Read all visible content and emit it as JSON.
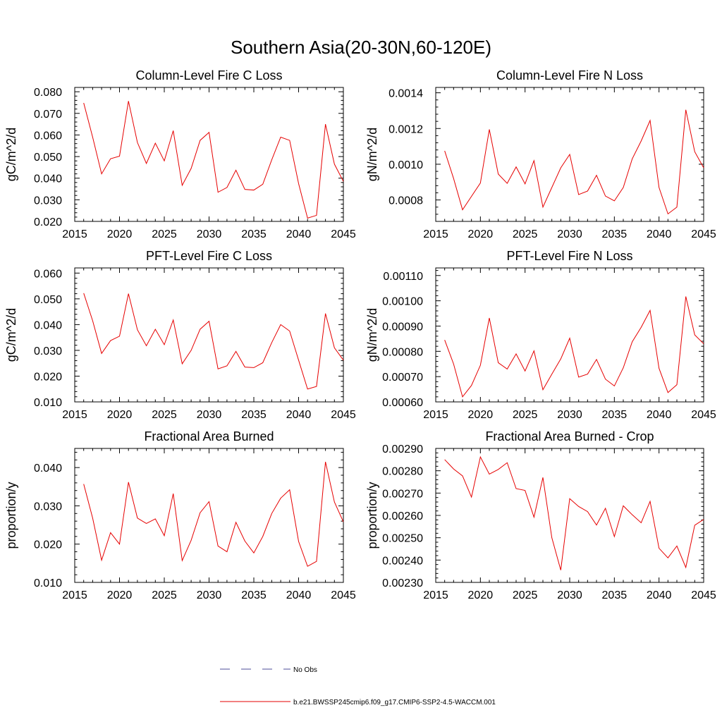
{
  "title": "Southern Asia(20-30N,60-120E)",
  "legend": [
    {
      "label": "No Obs",
      "color": "#4d4d99",
      "dash": true
    },
    {
      "label": "b.e21.BWSSP245cmip6.f09_g17.CMIP6-SSP2-4.5-WACCM.001",
      "color": "#e60000",
      "dash": false
    }
  ],
  "chart_data": [
    {
      "type": "line",
      "title": "Column-Level Fire C Loss",
      "ylabel": "gC/m^2/d",
      "xlim": [
        2015,
        2045
      ],
      "ylim": [
        0.02,
        0.082
      ],
      "xticks": [
        "2015",
        "2020",
        "2025",
        "2030",
        "2035",
        "2040",
        "2045"
      ],
      "yticks": [
        "0.020",
        "0.030",
        "0.040",
        "0.050",
        "0.060",
        "0.070",
        "0.080"
      ],
      "x": [
        2016,
        2017,
        2018,
        2019,
        2020,
        2021,
        2022,
        2023,
        2024,
        2025,
        2026,
        2027,
        2028,
        2029,
        2030,
        2031,
        2032,
        2033,
        2034,
        2035,
        2036,
        2037,
        2038,
        2039,
        2040,
        2041,
        2042,
        2043,
        2044,
        2045
      ],
      "series": [
        {
          "values": [
            0.0748,
            0.059,
            0.042,
            0.049,
            0.0502,
            0.0757,
            0.0565,
            0.0468,
            0.0562,
            0.048,
            0.062,
            0.0367,
            0.0445,
            0.0575,
            0.0612,
            0.0335,
            0.0357,
            0.0437,
            0.0348,
            0.0345,
            0.0372,
            0.0485,
            0.059,
            0.0575,
            0.0375,
            0.0215,
            0.0228,
            0.065,
            0.0465,
            0.0385
          ]
        }
      ]
    },
    {
      "type": "line",
      "title": "Column-Level Fire N Loss",
      "ylabel": "gN/m^2/d",
      "xlim": [
        2015,
        2045
      ],
      "ylim": [
        0.00068,
        0.00143
      ],
      "xticks": [
        "2015",
        "2020",
        "2025",
        "2030",
        "2035",
        "2040",
        "2045"
      ],
      "yticks": [
        "0.0008",
        "0.0010",
        "0.0012",
        "0.0014"
      ],
      "x": [
        2016,
        2017,
        2018,
        2019,
        2020,
        2021,
        2022,
        2023,
        2024,
        2025,
        2026,
        2027,
        2028,
        2029,
        2030,
        2031,
        2032,
        2033,
        2034,
        2035,
        2036,
        2037,
        2038,
        2039,
        2040,
        2041,
        2042,
        2043,
        2044,
        2045
      ],
      "series": [
        {
          "values": [
            0.001075,
            0.00092,
            0.000745,
            0.00082,
            0.000895,
            0.001195,
            0.000945,
            0.000893,
            0.000985,
            0.00089,
            0.00102,
            0.00076,
            0.00087,
            0.00098,
            0.001055,
            0.00083,
            0.00085,
            0.000938,
            0.000822,
            0.000795,
            0.00087,
            0.00103,
            0.00113,
            0.001245,
            0.00087,
            0.000722,
            0.00076,
            0.001305,
            0.00107,
            0.00098
          ]
        }
      ]
    },
    {
      "type": "line",
      "title": "PFT-Level Fire C Loss",
      "ylabel": "gC/m^2/d",
      "xlim": [
        2015,
        2045
      ],
      "ylim": [
        0.01,
        0.062
      ],
      "xticks": [
        "2015",
        "2020",
        "2025",
        "2030",
        "2035",
        "2040",
        "2045"
      ],
      "yticks": [
        "0.010",
        "0.020",
        "0.030",
        "0.040",
        "0.050",
        "0.060"
      ],
      "x": [
        2016,
        2017,
        2018,
        2019,
        2020,
        2021,
        2022,
        2023,
        2024,
        2025,
        2026,
        2027,
        2028,
        2029,
        2030,
        2031,
        2032,
        2033,
        2034,
        2035,
        2036,
        2037,
        2038,
        2039,
        2040,
        2041,
        2042,
        2043,
        2044,
        2045
      ],
      "series": [
        {
          "values": [
            0.0522,
            0.0415,
            0.0288,
            0.0338,
            0.0355,
            0.052,
            0.038,
            0.0318,
            0.0382,
            0.0322,
            0.0418,
            0.0248,
            0.03,
            0.0382,
            0.0413,
            0.0228,
            0.024,
            0.0296,
            0.0235,
            0.0233,
            0.0252,
            0.033,
            0.04,
            0.0375,
            0.0262,
            0.015,
            0.016,
            0.0443,
            0.031,
            0.0262
          ]
        }
      ]
    },
    {
      "type": "line",
      "title": "PFT-Level Fire N Loss",
      "ylabel": "gN/m^2/d",
      "xlim": [
        2015,
        2045
      ],
      "ylim": [
        0.0006,
        0.00113
      ],
      "xticks": [
        "2015",
        "2020",
        "2025",
        "2030",
        "2035",
        "2040",
        "2045"
      ],
      "yticks": [
        "0.00060",
        "0.00070",
        "0.00080",
        "0.00090",
        "0.00100",
        "0.00110"
      ],
      "x": [
        2016,
        2017,
        2018,
        2019,
        2020,
        2021,
        2022,
        2023,
        2024,
        2025,
        2026,
        2027,
        2028,
        2029,
        2030,
        2031,
        2032,
        2033,
        2034,
        2035,
        2036,
        2037,
        2038,
        2039,
        2040,
        2041,
        2042,
        2043,
        2044,
        2045
      ],
      "series": [
        {
          "values": [
            0.000845,
            0.00075,
            0.00062,
            0.000665,
            0.000745,
            0.000932,
            0.000755,
            0.00073,
            0.00079,
            0.000722,
            0.000802,
            0.000648,
            0.00071,
            0.00077,
            0.000852,
            0.000698,
            0.00071,
            0.000768,
            0.00069,
            0.000663,
            0.000735,
            0.000838,
            0.000895,
            0.000962,
            0.000733,
            0.000637,
            0.000668,
            0.001017,
            0.000865,
            0.00083
          ]
        }
      ]
    },
    {
      "type": "line",
      "title": "Fractional Area Burned",
      "ylabel": "proportion/y",
      "xlim": [
        2015,
        2045
      ],
      "ylim": [
        0.01,
        0.045
      ],
      "xticks": [
        "2015",
        "2020",
        "2025",
        "2030",
        "2035",
        "2040",
        "2045"
      ],
      "yticks": [
        "0.010",
        "0.020",
        "0.030",
        "0.040"
      ],
      "x": [
        2016,
        2017,
        2018,
        2019,
        2020,
        2021,
        2022,
        2023,
        2024,
        2025,
        2026,
        2027,
        2028,
        2029,
        2030,
        2031,
        2032,
        2033,
        2034,
        2035,
        2036,
        2037,
        2038,
        2039,
        2040,
        2041,
        2042,
        2043,
        2044,
        2045
      ],
      "series": [
        {
          "values": [
            0.0357,
            0.0268,
            0.0158,
            0.023,
            0.02,
            0.0362,
            0.0268,
            0.0254,
            0.0266,
            0.0222,
            0.0332,
            0.0157,
            0.021,
            0.0282,
            0.0311,
            0.0195,
            0.018,
            0.0257,
            0.0208,
            0.0177,
            0.022,
            0.028,
            0.032,
            0.0342,
            0.0207,
            0.0142,
            0.0155,
            0.0415,
            0.031,
            0.0258
          ]
        }
      ]
    },
    {
      "type": "line",
      "title": "Fractional Area Burned - Crop",
      "ylabel": "proportion/y",
      "xlim": [
        2015,
        2045
      ],
      "ylim": [
        0.0023,
        0.0029
      ],
      "xticks": [
        "2015",
        "2020",
        "2025",
        "2030",
        "2035",
        "2040",
        "2045"
      ],
      "yticks": [
        "0.00230",
        "0.00240",
        "0.00250",
        "0.00260",
        "0.00270",
        "0.00280",
        "0.00290"
      ],
      "x": [
        2016,
        2017,
        2018,
        2019,
        2020,
        2021,
        2022,
        2023,
        2024,
        2025,
        2026,
        2027,
        2028,
        2029,
        2030,
        2031,
        2032,
        2033,
        2034,
        2035,
        2036,
        2037,
        2038,
        2039,
        2040,
        2041,
        2042,
        2043,
        2044,
        2045
      ],
      "series": [
        {
          "values": [
            0.00285,
            0.002808,
            0.002777,
            0.002682,
            0.002862,
            0.002785,
            0.002806,
            0.002836,
            0.00272,
            0.002712,
            0.002592,
            0.00277,
            0.0025,
            0.002355,
            0.002675,
            0.00264,
            0.002617,
            0.002557,
            0.002632,
            0.002505,
            0.002643,
            0.002603,
            0.002567,
            0.002663,
            0.002453,
            0.00241,
            0.002463,
            0.002367,
            0.002556,
            0.002582
          ]
        }
      ]
    }
  ]
}
